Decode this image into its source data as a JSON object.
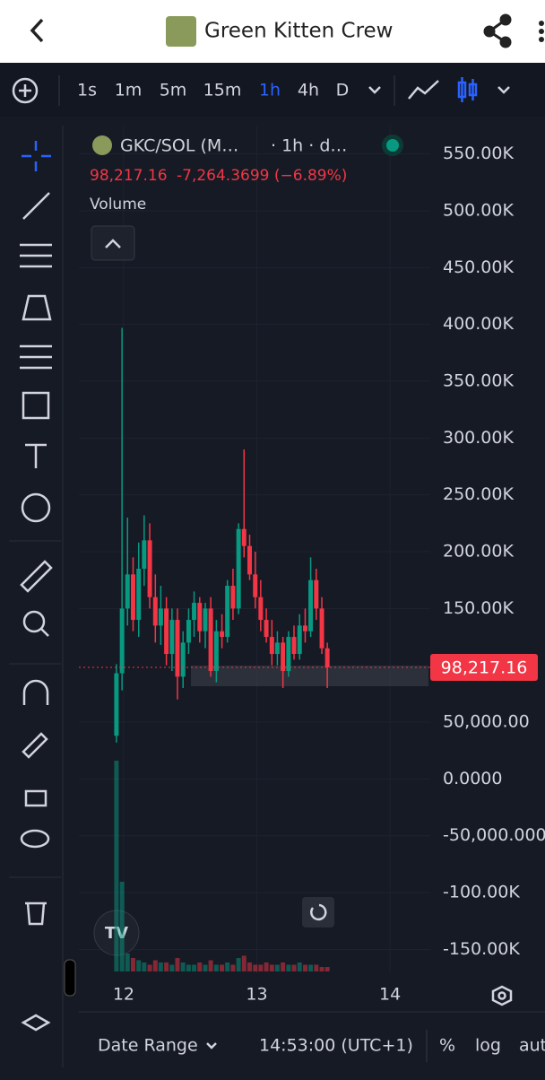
{
  "app_bar": {
    "title": "Green Kitten Crew"
  },
  "toolbar": {
    "intervals": [
      "1s",
      "1m",
      "5m",
      "15m",
      "1h",
      "4h",
      "D"
    ],
    "active": "1h"
  },
  "legend": {
    "symbol": "GKC/SOL (M…",
    "interval": "· 1h · d…",
    "price": "98,217.16",
    "change": "-7,264.3699 (−6.89%)",
    "volume_label": "Volume"
  },
  "chart_data": {
    "type": "candlestick",
    "x": [
      11.946,
      11.988,
      12.029,
      12.071,
      12.113,
      12.154,
      12.196,
      12.238,
      12.279,
      12.321,
      12.363,
      12.404,
      12.446,
      12.488,
      12.529,
      12.571,
      12.613,
      12.654,
      12.696,
      12.738,
      12.779,
      12.821,
      12.863,
      12.904,
      12.946,
      12.988,
      13.029,
      13.071,
      13.113,
      13.154,
      13.196,
      13.238,
      13.279,
      13.321,
      13.363,
      13.404,
      13.446,
      13.488,
      13.529
    ],
    "open": [
      38000,
      93000,
      150000,
      180000,
      140000,
      185000,
      210000,
      160000,
      135000,
      150000,
      110000,
      140000,
      90000,
      120000,
      140000,
      155000,
      130000,
      150000,
      95000,
      130000,
      125000,
      170000,
      150000,
      220000,
      205000,
      180000,
      160000,
      140000,
      125000,
      110000,
      120000,
      95000,
      125000,
      110000,
      135000,
      130000,
      175000,
      150000,
      115000
    ],
    "high": [
      101000,
      397000,
      230000,
      195000,
      208000,
      232000,
      225000,
      180000,
      170000,
      160000,
      150000,
      150000,
      130000,
      150000,
      165000,
      160000,
      155000,
      160000,
      140000,
      145000,
      175000,
      185000,
      225000,
      290000,
      215000,
      200000,
      175000,
      150000,
      140000,
      130000,
      125000,
      130000,
      135000,
      145000,
      150000,
      195000,
      185000,
      160000,
      120000
    ],
    "low": [
      32000,
      78000,
      135000,
      130000,
      125000,
      170000,
      150000,
      120000,
      118000,
      100000,
      95000,
      70000,
      80000,
      110000,
      125000,
      120000,
      115000,
      90000,
      85000,
      115000,
      120000,
      140000,
      145000,
      195000,
      175000,
      150000,
      130000,
      120000,
      100000,
      100000,
      80000,
      90000,
      105000,
      105000,
      120000,
      125000,
      140000,
      110000,
      80000
    ],
    "close": [
      93000,
      150000,
      180000,
      140000,
      185000,
      210000,
      160000,
      135000,
      150000,
      110000,
      140000,
      90000,
      120000,
      140000,
      155000,
      130000,
      150000,
      95000,
      130000,
      125000,
      170000,
      150000,
      220000,
      205000,
      180000,
      160000,
      140000,
      125000,
      110000,
      120000,
      95000,
      125000,
      110000,
      135000,
      130000,
      175000,
      150000,
      115000,
      98217.16
    ],
    "last_label": "98,217.16",
    "volume": [
      94,
      40,
      8,
      6,
      5,
      4,
      3,
      5,
      4,
      4,
      3,
      6,
      4,
      3,
      3,
      4,
      3,
      5,
      3,
      3,
      4,
      3,
      6,
      7,
      4,
      3,
      3,
      4,
      3,
      3,
      4,
      3,
      3,
      4,
      3,
      3,
      3,
      2,
      2
    ],
    "up_color": "#089981",
    "down_color": "#f23645",
    "ylim": [
      -171000,
      575000
    ],
    "yticks": [
      {
        "value": 550000,
        "label": "550.00K"
      },
      {
        "value": 500000,
        "label": "500.00K"
      },
      {
        "value": 450000,
        "label": "450.00K"
      },
      {
        "value": 400000,
        "label": "400.00K"
      },
      {
        "value": 350000,
        "label": "350.00K"
      },
      {
        "value": 300000,
        "label": "300.00K"
      },
      {
        "value": 250000,
        "label": "250.00K"
      },
      {
        "value": 200000,
        "label": "200.00K"
      },
      {
        "value": 150000,
        "label": "150.00K"
      },
      {
        "value": 50000,
        "label": "50,000.00"
      },
      {
        "value": 0,
        "label": "0.0000"
      },
      {
        "value": -50000,
        "label": "-50,000.000"
      },
      {
        "value": -100000,
        "label": "-100.00K"
      },
      {
        "value": -150000,
        "label": "-150.00K"
      }
    ],
    "xlim": [
      11.664,
      14.302
    ],
    "xticks": [
      12,
      13,
      14
    ],
    "grid": true
  },
  "bottom_bar": {
    "date_range": "Date Range",
    "time": "14:53:00 (UTC+1)",
    "percent": "%",
    "log": "log",
    "auto": "aut"
  }
}
